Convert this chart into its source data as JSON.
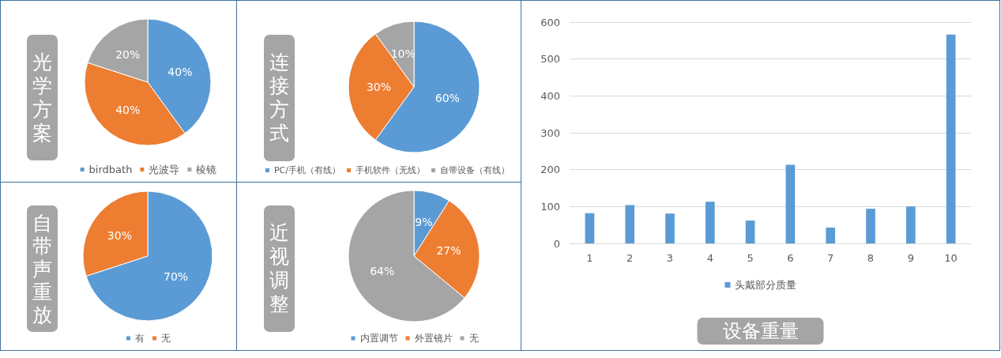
{
  "chart_data": [
    {
      "type": "pie",
      "title": "光学方案",
      "categories": [
        "birdbath",
        "光波导",
        "棱镜"
      ],
      "values": [
        40,
        40,
        20
      ],
      "colors": [
        "#5b9bd5",
        "#ed7d31",
        "#a5a5a5"
      ],
      "value_labels": [
        "40%",
        "40%",
        "20%"
      ],
      "legend": "bottom"
    },
    {
      "type": "pie",
      "title": "连接方式",
      "categories": [
        "PC/手机（有线）",
        "手机软件（无线）",
        "自带设备（有线）"
      ],
      "values": [
        60,
        30,
        10
      ],
      "colors": [
        "#5b9bd5",
        "#ed7d31",
        "#a5a5a5"
      ],
      "value_labels": [
        "60%",
        "30%",
        "10%"
      ],
      "legend": "bottom"
    },
    {
      "type": "pie",
      "title": "自带声重放",
      "categories": [
        "有",
        "无"
      ],
      "values": [
        70,
        30
      ],
      "colors": [
        "#5b9bd5",
        "#ed7d31"
      ],
      "value_labels": [
        "70%",
        "30%"
      ],
      "legend": "bottom"
    },
    {
      "type": "pie",
      "title": "近视调整",
      "categories": [
        "内置调节",
        "外置镜片",
        "无"
      ],
      "values": [
        9,
        27,
        64
      ],
      "colors": [
        "#5b9bd5",
        "#ed7d31",
        "#a5a5a5"
      ],
      "value_labels": [
        "9%",
        "27%",
        "64%"
      ],
      "legend": "bottom"
    },
    {
      "type": "bar",
      "title": "设备重量",
      "categories": [
        "1",
        "2",
        "3",
        "4",
        "5",
        "6",
        "7",
        "8",
        "9",
        "10"
      ],
      "series": [
        {
          "name": "头戴部分质量",
          "color": "#5b9bd5",
          "values": [
            82,
            104,
            81,
            113,
            62,
            213,
            43,
            94,
            100,
            566
          ]
        }
      ],
      "ylim": [
        0,
        600
      ],
      "yticks": [
        0,
        100,
        200,
        300,
        400,
        500,
        600
      ],
      "grid": "y",
      "legend": "bottom"
    }
  ]
}
